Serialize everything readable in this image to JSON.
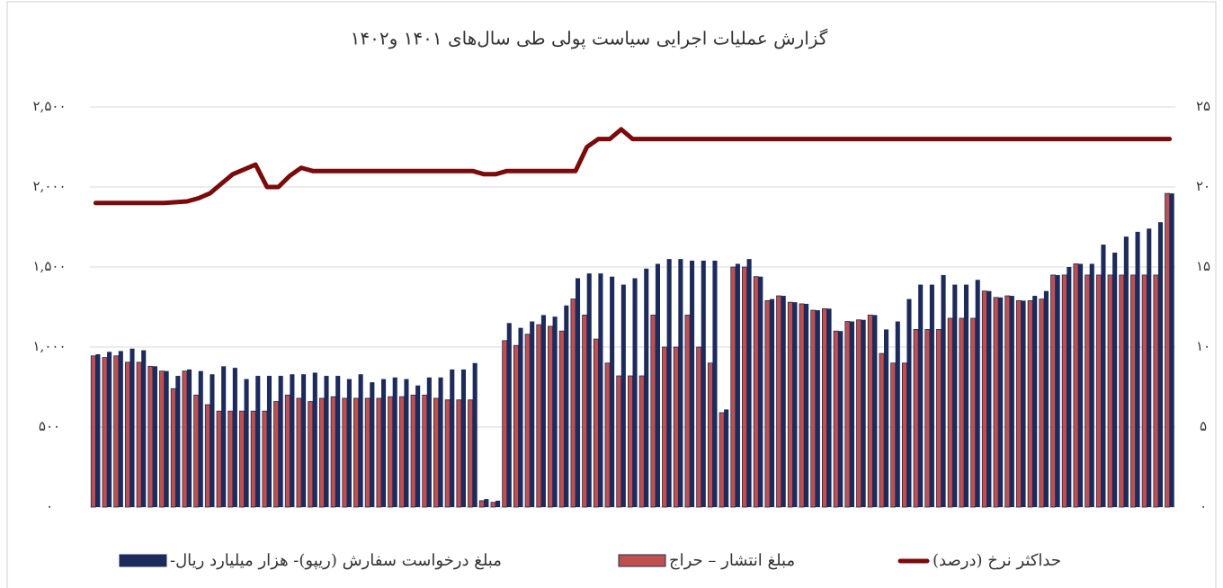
{
  "chart_data": {
    "type": "bar",
    "title": "گزارش عملیات اجرایی سیاست پولی طی سال‌های ۱۴۰۱ و۱۴۰۲",
    "categories": [
      null,
      null,
      null,
      null,
      null,
      null,
      null,
      null,
      null,
      null,
      null,
      null,
      null,
      null,
      null,
      null,
      null,
      null,
      null,
      null,
      null,
      null,
      null,
      null,
      null,
      null,
      null,
      null,
      null,
      null,
      null,
      null,
      null,
      null,
      null,
      null,
      null,
      null,
      null,
      null,
      null,
      null,
      null,
      null,
      null,
      null,
      null,
      null,
      null,
      null,
      null,
      null,
      null,
      null,
      null,
      null,
      null,
      null,
      null,
      null,
      null,
      null,
      null,
      null,
      null,
      null,
      null,
      null,
      null,
      null,
      null,
      null,
      null,
      null,
      null,
      null,
      null,
      null,
      null,
      null,
      null,
      null,
      null,
      null,
      null,
      null,
      null,
      null,
      null,
      null,
      null,
      null,
      null,
      null,
      null
    ],
    "series": [
      {
        "name": "مبلغ درخواست سفارش (ریپو)- هزار میلیارد ریال-",
        "color": "#1c2a5c",
        "values": [
          955,
          970,
          975,
          990,
          980,
          880,
          850,
          820,
          860,
          850,
          830,
          880,
          870,
          800,
          820,
          820,
          820,
          830,
          830,
          840,
          820,
          820,
          800,
          830,
          780,
          800,
          810,
          800,
          760,
          810,
          810,
          860,
          860,
          900,
          50,
          40,
          1150,
          1120,
          1160,
          1200,
          1190,
          1260,
          1430,
          1460,
          1460,
          1440,
          1390,
          1430,
          1490,
          1520,
          1550,
          1550,
          1540,
          1540,
          1540,
          610,
          1520,
          1550,
          1440,
          1300,
          1320,
          1280,
          1270,
          1230,
          1240,
          1100,
          1160,
          1170,
          1200,
          1110,
          1160,
          1300,
          1390,
          1390,
          1450,
          1390,
          1390,
          1420,
          1350,
          1310,
          1320,
          1290,
          1320,
          1350,
          1450,
          1500,
          1520,
          1520,
          1640,
          1590,
          1690,
          1720,
          1740,
          1780,
          1960
        ]
      },
      {
        "name": "مبلغ انتشار – حراج",
        "color": "#c0504d",
        "values": [
          945,
          935,
          945,
          905,
          905,
          880,
          850,
          740,
          850,
          700,
          640,
          600,
          600,
          600,
          600,
          600,
          660,
          700,
          680,
          660,
          680,
          690,
          680,
          680,
          680,
          680,
          690,
          690,
          700,
          700,
          680,
          670,
          670,
          670,
          40,
          30,
          1040,
          1010,
          1080,
          1140,
          1130,
          1100,
          1300,
          1200,
          1050,
          900,
          820,
          820,
          820,
          1200,
          1000,
          1000,
          1200,
          1000,
          900,
          590,
          1500,
          1500,
          1440,
          1290,
          1320,
          1280,
          1270,
          1230,
          1240,
          1100,
          1160,
          1170,
          1200,
          960,
          900,
          900,
          1110,
          1110,
          1110,
          1180,
          1180,
          1180,
          1350,
          1310,
          1320,
          1290,
          1290,
          1300,
          1450,
          1450,
          1520,
          1450,
          1450,
          1450,
          1450,
          1450,
          1450,
          1450,
          1960
        ]
      },
      {
        "name": "حداکثر نرخ (درصد)",
        "color": "#7b0a0a",
        "type": "line",
        "axis": "y2",
        "values": [
          19,
          19,
          19,
          19,
          19,
          19,
          19,
          19.05,
          19.1,
          19.3,
          19.6,
          20.2,
          20.8,
          21.1,
          21.4,
          20,
          20,
          20.7,
          21.2,
          21,
          21,
          21,
          21,
          21,
          21,
          21,
          21,
          21,
          21,
          21,
          21,
          21,
          21,
          21,
          20.8,
          20.8,
          21,
          21,
          21,
          21,
          21,
          21,
          21,
          22.5,
          23,
          23,
          23.6,
          23,
          23,
          23,
          23,
          23,
          23,
          23,
          23,
          23,
          23,
          23,
          23,
          23,
          23,
          23,
          23,
          23,
          23,
          23,
          23,
          23,
          23,
          23,
          23,
          23,
          23,
          23,
          23,
          23,
          23,
          23,
          23,
          23,
          23,
          23,
          23,
          23,
          23,
          23,
          23,
          23,
          23,
          23,
          23,
          23,
          23,
          23,
          23
        ]
      }
    ],
    "ylim": [
      0,
      2500
    ],
    "yticks": [
      {
        "value": 0,
        "label": "۰"
      },
      {
        "value": 500,
        "label": "۵۰۰"
      },
      {
        "value": 1000,
        "label": "۱,۰۰۰"
      },
      {
        "value": 1500,
        "label": "۱,۵۰۰"
      },
      {
        "value": 2000,
        "label": "۲,۰۰۰"
      },
      {
        "value": 2500,
        "label": "۲,۵۰۰"
      }
    ],
    "y2lim": [
      0,
      25
    ],
    "y2ticks": [
      {
        "value": 0,
        "label": "۰"
      },
      {
        "value": 5,
        "label": "۵"
      },
      {
        "value": 10,
        "label": "۱۰"
      },
      {
        "value": 15,
        "label": "۱۵"
      },
      {
        "value": 20,
        "label": "۲۰"
      },
      {
        "value": 25,
        "label": "۲۵"
      }
    ],
    "grid": true,
    "legend": "bottom"
  }
}
